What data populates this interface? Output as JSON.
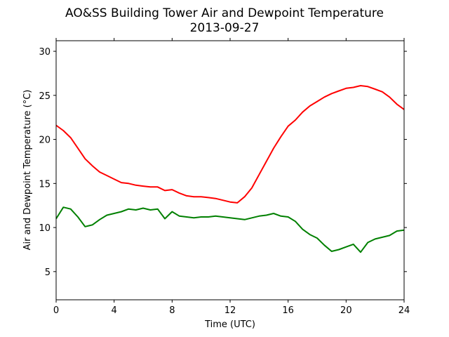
{
  "chart_data": {
    "type": "line",
    "title": "AO&SS Building Tower Air and Dewpoint Temperature",
    "subtitle": "2013-09-27",
    "xlabel": "Time (UTC)",
    "ylabel": "Air and Dewpoint Temperature (°C)",
    "xlim": [
      0,
      24
    ],
    "ylim": [
      1.8,
      31.2
    ],
    "xticks": [
      0,
      4,
      8,
      12,
      16,
      20,
      24
    ],
    "yticks": [
      5,
      10,
      15,
      20,
      25,
      30
    ],
    "grid": false,
    "legend": "none",
    "series": [
      {
        "color": "#ff0000",
        "x": [
          0,
          0.5,
          1,
          1.5,
          2,
          2.5,
          3,
          3.5,
          4,
          4.5,
          5,
          5.5,
          6,
          6.5,
          7,
          7.5,
          8,
          8.5,
          9,
          9.5,
          10,
          10.5,
          11,
          11.5,
          12,
          12.5,
          13,
          13.5,
          14,
          14.5,
          15,
          15.5,
          16,
          16.5,
          17,
          17.5,
          18,
          18.5,
          19,
          19.5,
          20,
          20.5,
          21,
          21.5,
          22,
          22.5,
          23,
          23.5,
          24
        ],
        "values": [
          21.6,
          21.0,
          20.2,
          19.0,
          17.8,
          17.0,
          16.3,
          15.9,
          15.5,
          15.1,
          15.0,
          14.8,
          14.7,
          14.6,
          14.6,
          14.2,
          14.3,
          13.9,
          13.6,
          13.5,
          13.5,
          13.4,
          13.3,
          13.1,
          12.9,
          12.8,
          13.5,
          14.5,
          16.0,
          17.5,
          19.0,
          20.3,
          21.5,
          22.2,
          23.1,
          23.8,
          24.3,
          24.8,
          25.2,
          25.5,
          25.8,
          25.9,
          26.1,
          26.0,
          25.7,
          25.4,
          24.8,
          24.0,
          23.4
        ]
      },
      {
        "color": "#008000",
        "x": [
          0,
          0.5,
          1,
          1.5,
          2,
          2.5,
          3,
          3.5,
          4,
          4.5,
          5,
          5.5,
          6,
          6.5,
          7,
          7.5,
          8,
          8.5,
          9,
          9.5,
          10,
          10.5,
          11,
          11.5,
          12,
          12.5,
          13,
          13.5,
          14,
          14.5,
          15,
          15.5,
          16,
          16.5,
          17,
          17.5,
          18,
          18.5,
          19,
          19.5,
          20,
          20.5,
          21,
          21.5,
          22,
          22.5,
          23,
          23.5,
          24
        ],
        "values": [
          11.0,
          12.3,
          12.1,
          11.2,
          10.1,
          10.3,
          10.9,
          11.4,
          11.6,
          11.8,
          12.1,
          12.0,
          12.2,
          12.0,
          12.1,
          11.0,
          11.8,
          11.3,
          11.2,
          11.1,
          11.2,
          11.2,
          11.3,
          11.2,
          11.1,
          11.0,
          10.9,
          11.1,
          11.3,
          11.4,
          11.6,
          11.3,
          11.2,
          10.7,
          9.8,
          9.2,
          8.8,
          8.0,
          7.3,
          7.5,
          7.8,
          8.1,
          7.2,
          8.3,
          8.7,
          8.9,
          9.1,
          9.6,
          9.7
        ]
      }
    ]
  }
}
